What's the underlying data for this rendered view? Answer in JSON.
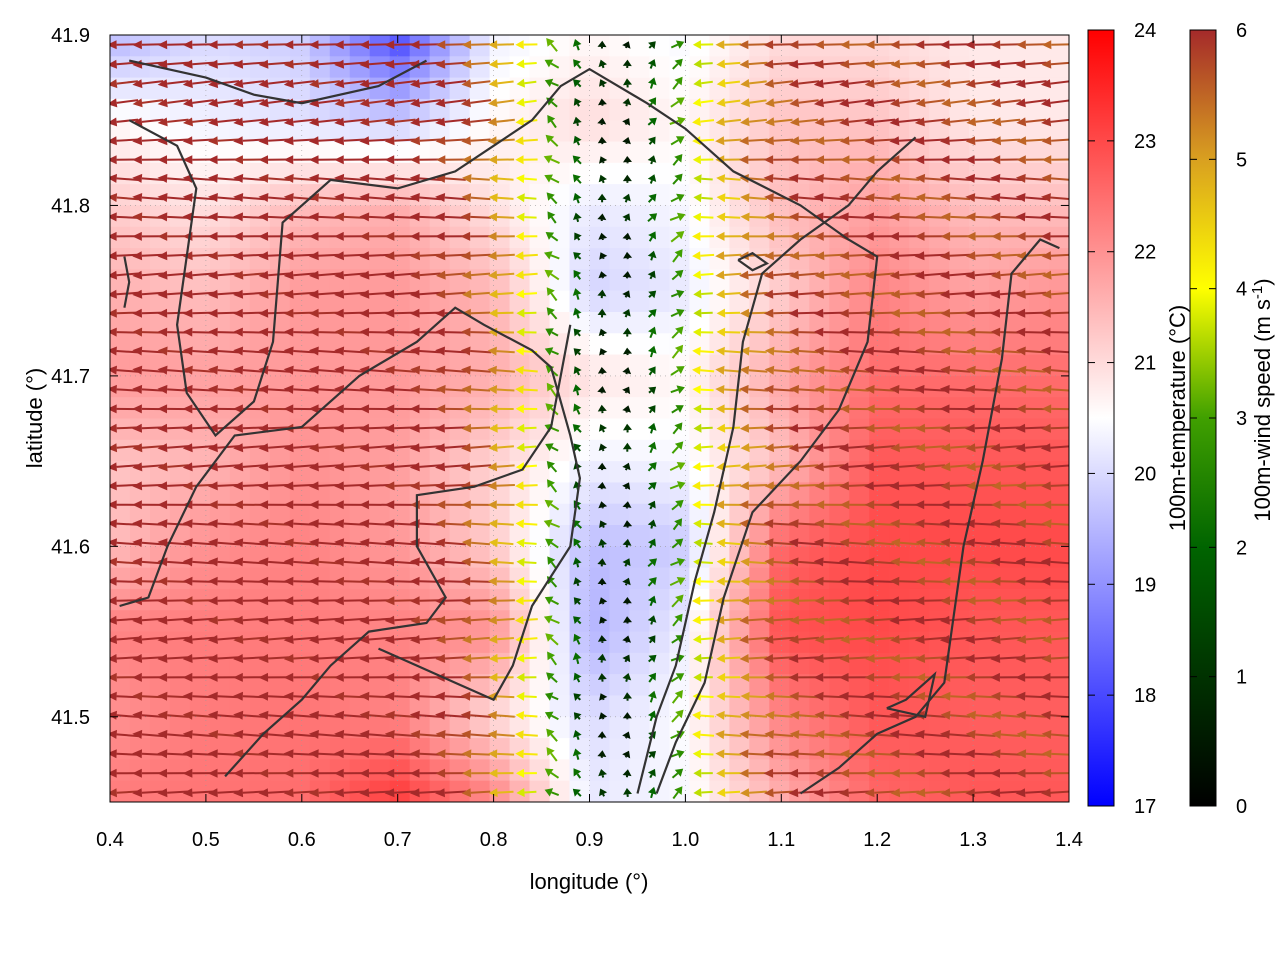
{
  "chart_data": {
    "type": "heatmap",
    "subtype": "scalar field with wind vectors and contour lines",
    "title": "",
    "xlabel": "longitude (°)",
    "ylabel": "latitude (°)",
    "xlim": [
      0.4,
      1.4
    ],
    "ylim": [
      41.45,
      41.9
    ],
    "xticks": [
      "0.4",
      "0.5",
      "0.6",
      "0.7",
      "0.8",
      "0.9",
      "1.0",
      "1.1",
      "1.2",
      "1.3",
      "1.4"
    ],
    "yticks": [
      "41.5",
      "41.6",
      "41.7",
      "41.8",
      "41.9"
    ],
    "grid": true,
    "temperature_field": {
      "label": "100m-temperature (°C)",
      "range": [
        17,
        24
      ],
      "ticks": [
        "17",
        "18",
        "19",
        "20",
        "21",
        "22",
        "23",
        "24"
      ],
      "colormap": [
        "#0000ff",
        "#ffffff",
        "#ff0000"
      ],
      "lon": [
        0.4,
        0.5,
        0.6,
        0.7,
        0.8,
        0.9,
        1.0,
        1.1,
        1.2,
        1.3,
        1.4
      ],
      "lat": [
        41.9,
        41.85,
        41.8,
        41.75,
        41.7,
        41.65,
        41.6,
        41.55,
        41.5,
        41.45
      ],
      "values": [
        [
          19.5,
          20.0,
          19.8,
          18.0,
          20.3,
          20.6,
          20.4,
          21.0,
          21.0,
          20.8,
          20.8
        ],
        [
          20.6,
          20.3,
          20.1,
          19.8,
          20.6,
          21.0,
          20.6,
          21.3,
          21.3,
          20.8,
          20.8
        ],
        [
          21.2,
          20.9,
          21.4,
          21.6,
          20.9,
          20.2,
          20.4,
          21.4,
          21.8,
          21.4,
          21.4
        ],
        [
          21.6,
          21.4,
          21.9,
          21.9,
          21.5,
          19.9,
          20.2,
          21.2,
          22.2,
          21.8,
          22.0
        ],
        [
          21.9,
          21.8,
          21.9,
          21.9,
          21.6,
          20.9,
          20.6,
          21.7,
          22.5,
          22.5,
          22.5
        ],
        [
          21.3,
          21.5,
          22.0,
          21.8,
          21.1,
          20.3,
          20.4,
          21.4,
          22.8,
          22.8,
          22.8
        ],
        [
          21.4,
          22.0,
          22.2,
          21.9,
          21.2,
          19.6,
          19.8,
          22.6,
          23.0,
          23.0,
          23.0
        ],
        [
          22.2,
          22.3,
          22.3,
          22.2,
          22.0,
          19.4,
          20.3,
          22.9,
          23.0,
          22.8,
          22.8
        ],
        [
          22.0,
          22.3,
          22.4,
          22.2,
          21.0,
          20.0,
          20.5,
          22.2,
          22.8,
          22.7,
          22.7
        ],
        [
          22.3,
          22.4,
          22.5,
          23.2,
          22.2,
          20.2,
          20.4,
          21.6,
          22.6,
          22.8,
          22.8
        ]
      ]
    },
    "wind_field": {
      "label": "100m-wind speed (m s-1)",
      "range": [
        0,
        6
      ],
      "ticks": [
        "0",
        "1",
        "2",
        "3",
        "4",
        "5",
        "6"
      ],
      "colormap": [
        "#000000",
        "#006400",
        "#40a000",
        "#ffff00",
        "#d9a020",
        "#a52a2a"
      ],
      "valley_lon": 0.925,
      "valley_halfwidth_deg": 0.045,
      "far_speed_west": 6,
      "far_speed_east": 5.5,
      "direction": "westward (easterly flow) with northward component inside valley"
    },
    "contour_lines": [
      {
        "label": "upper-left",
        "points": [
          [
            0.42,
            41.885
          ],
          [
            0.5,
            41.875
          ],
          [
            0.55,
            41.865
          ],
          [
            0.6,
            41.86
          ],
          [
            0.68,
            41.87
          ],
          [
            0.73,
            41.885
          ]
        ]
      },
      {
        "label": "loop-left",
        "points": [
          [
            0.42,
            41.85
          ],
          [
            0.47,
            41.835
          ],
          [
            0.49,
            41.81
          ],
          [
            0.48,
            41.77
          ],
          [
            0.47,
            41.73
          ],
          [
            0.48,
            41.69
          ],
          [
            0.51,
            41.665
          ],
          [
            0.55,
            41.685
          ],
          [
            0.57,
            41.72
          ],
          [
            0.58,
            41.79
          ],
          [
            0.63,
            41.815
          ],
          [
            0.7,
            41.81
          ],
          [
            0.76,
            41.82
          ],
          [
            0.8,
            41.835
          ],
          [
            0.84,
            41.85
          ],
          [
            0.87,
            41.87
          ],
          [
            0.9,
            41.88
          ],
          [
            0.96,
            41.86
          ],
          [
            1.0,
            41.845
          ],
          [
            1.05,
            41.82
          ],
          [
            1.12,
            41.8
          ],
          [
            1.17,
            41.78
          ],
          [
            1.2,
            41.77
          ],
          [
            1.19,
            41.72
          ],
          [
            1.16,
            41.68
          ],
          [
            1.12,
            41.65
          ],
          [
            1.07,
            41.62
          ],
          [
            1.04,
            41.57
          ],
          [
            1.02,
            41.52
          ],
          [
            0.99,
            41.485
          ],
          [
            0.97,
            41.455
          ]
        ]
      },
      {
        "label": "inner-valley",
        "points": [
          [
            0.41,
            41.565
          ],
          [
            0.44,
            41.57
          ],
          [
            0.46,
            41.6
          ],
          [
            0.49,
            41.635
          ],
          [
            0.53,
            41.665
          ],
          [
            0.6,
            41.67
          ],
          [
            0.66,
            41.7
          ],
          [
            0.72,
            41.72
          ],
          [
            0.76,
            41.74
          ],
          [
            0.79,
            41.73
          ],
          [
            0.84,
            41.715
          ],
          [
            0.86,
            41.705
          ],
          [
            0.88,
            41.665
          ],
          [
            0.89,
            41.64
          ],
          [
            0.88,
            41.6
          ],
          [
            0.84,
            41.565
          ],
          [
            0.82,
            41.53
          ],
          [
            0.8,
            41.51
          ],
          [
            0.76,
            41.52
          ],
          [
            0.72,
            41.53
          ],
          [
            0.68,
            41.54
          ]
        ]
      },
      {
        "label": "lower-left",
        "points": [
          [
            0.52,
            41.465
          ],
          [
            0.56,
            41.49
          ],
          [
            0.6,
            41.51
          ],
          [
            0.63,
            41.53
          ],
          [
            0.67,
            41.55
          ],
          [
            0.73,
            41.555
          ],
          [
            0.75,
            41.57
          ],
          [
            0.72,
            41.6
          ],
          [
            0.72,
            41.63
          ],
          [
            0.78,
            41.635
          ],
          [
            0.83,
            41.645
          ],
          [
            0.86,
            41.67
          ],
          [
            0.87,
            41.7
          ],
          [
            0.88,
            41.73
          ]
        ]
      },
      {
        "label": "valley-east",
        "points": [
          [
            0.95,
            41.455
          ],
          [
            0.97,
            41.5
          ],
          [
            0.99,
            41.53
          ],
          [
            1.01,
            41.58
          ],
          [
            1.03,
            41.62
          ],
          [
            1.05,
            41.67
          ],
          [
            1.06,
            41.72
          ],
          [
            1.08,
            41.76
          ],
          [
            1.12,
            41.78
          ],
          [
            1.17,
            41.8
          ],
          [
            1.2,
            41.82
          ],
          [
            1.24,
            41.84
          ]
        ]
      },
      {
        "label": "east-ridge",
        "points": [
          [
            1.12,
            41.455
          ],
          [
            1.16,
            41.47
          ],
          [
            1.2,
            41.49
          ],
          [
            1.24,
            41.5
          ],
          [
            1.27,
            41.52
          ],
          [
            1.28,
            41.56
          ],
          [
            1.29,
            41.6
          ],
          [
            1.31,
            41.65
          ],
          [
            1.33,
            41.71
          ],
          [
            1.34,
            41.76
          ],
          [
            1.37,
            41.78
          ],
          [
            1.39,
            41.775
          ]
        ]
      },
      {
        "label": "small-loop",
        "points": [
          [
            1.055,
            41.768
          ],
          [
            1.07,
            41.772
          ],
          [
            1.085,
            41.766
          ],
          [
            1.07,
            41.762
          ],
          [
            1.055,
            41.768
          ]
        ]
      },
      {
        "label": "small-corner",
        "points": [
          [
            1.21,
            41.505
          ],
          [
            1.25,
            41.5
          ],
          [
            1.26,
            41.525
          ],
          [
            1.23,
            41.51
          ],
          [
            1.21,
            41.505
          ]
        ]
      },
      {
        "label": "left-stub",
        "points": [
          [
            0.415,
            41.77
          ],
          [
            0.42,
            41.755
          ],
          [
            0.415,
            41.74
          ]
        ]
      }
    ]
  }
}
